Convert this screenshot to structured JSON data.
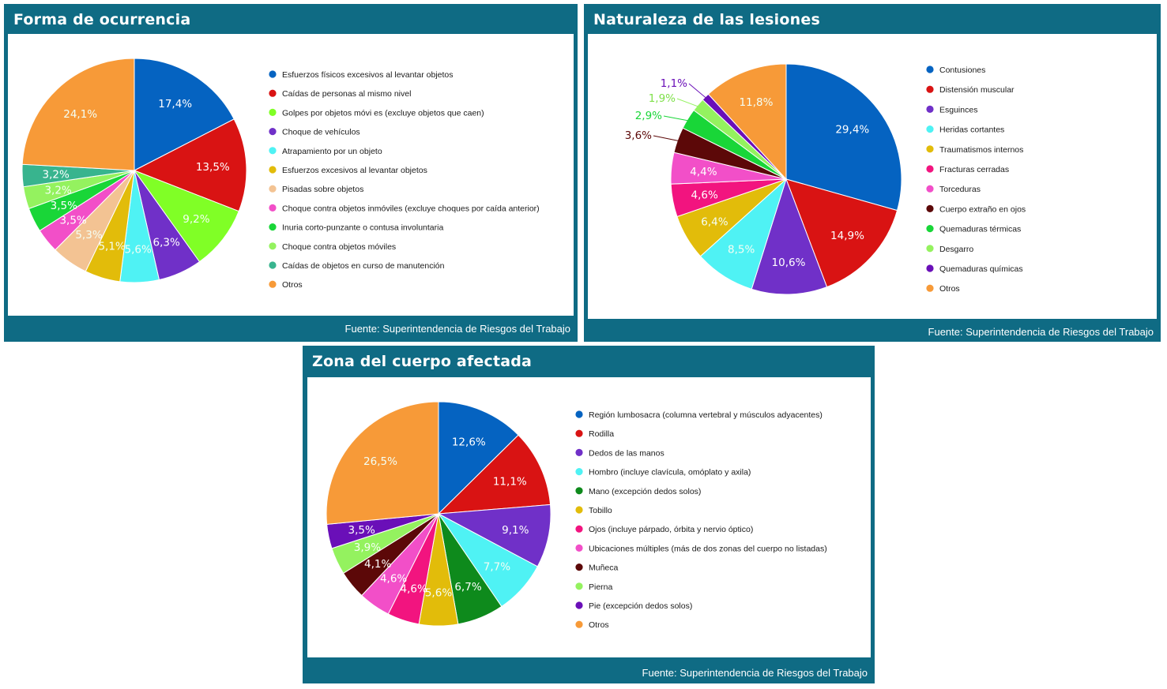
{
  "source_label": "Fuente: Superintendencia de Riesgos del Trabajo",
  "chart_data": [
    {
      "type": "pie",
      "title": "Forma de ocurrencia",
      "source": "Fuente: Superintendencia de Riesgos del Trabajo",
      "slices": [
        {
          "label": "Esfuerzos físicos excesivos al levantar objetos",
          "value": 17.4,
          "text": "17,4%",
          "color": "#0563c1"
        },
        {
          "label": "Caídas de personas al mismo nivel",
          "value": 13.5,
          "text": "13,5%",
          "color": "#d91313"
        },
        {
          "label": "Golpes por objetos móvi es (excluye objetos que caen)",
          "value": 9.2,
          "text": "9,2%",
          "color": "#80ff26"
        },
        {
          "label": "Choque de vehículos",
          "value": 6.3,
          "text": "6,3%",
          "color": "#7030c8"
        },
        {
          "label": "Atrapamiento por un objeto",
          "value": 5.6,
          "text": "5,6%",
          "color": "#4ff2f4"
        },
        {
          "label": "Esfuerzos excesivos al levantar objetos",
          "value": 5.1,
          "text": "5,1%",
          "color": "#e2bc0a"
        },
        {
          "label": "Pisadas sobre objetos",
          "value": 5.3,
          "text": "5,3%",
          "color": "#f3c393"
        },
        {
          "label": "Choque contra objetos inmóviles (excluye choques por caída anterior)",
          "value": 3.5,
          "text": "3,5%",
          "color": "#f24fc8"
        },
        {
          "label": "Inuria corto-punzante o contusa involuntaria",
          "value": 3.5,
          "text": "3,5%",
          "color": "#19d638"
        },
        {
          "label": "Choque contra objetos móviles",
          "value": 3.2,
          "text": "3,2%",
          "color": "#94f25f"
        },
        {
          "label": "Caídas de objetos en curso de manutención",
          "value": 3.2,
          "text": "3,2%",
          "color": "#38b48e"
        },
        {
          "label": "Otros",
          "value": 24.1,
          "text": "24,1%",
          "color": "#f79a38"
        }
      ]
    },
    {
      "type": "pie",
      "title": "Naturaleza de las lesiones",
      "source": "Fuente: Superintendencia de Riesgos del Trabajo",
      "slices": [
        {
          "label": "Contusiones",
          "value": 29.4,
          "text": "29,4%",
          "color": "#0563c1"
        },
        {
          "label": "Distensión muscular",
          "value": 14.9,
          "text": "14,9%",
          "color": "#d91313"
        },
        {
          "label": "Esguinces",
          "value": 10.6,
          "text": "10,6%",
          "color": "#7030c8"
        },
        {
          "label": "Heridas cortantes",
          "value": 8.5,
          "text": "8,5%",
          "color": "#4ff2f4"
        },
        {
          "label": "Traumatismos internos",
          "value": 6.4,
          "text": "6,4%",
          "color": "#e2bc0a"
        },
        {
          "label": "Fracturas cerradas",
          "value": 4.6,
          "text": "4,6%",
          "color": "#f2147f"
        },
        {
          "label": "Torceduras",
          "value": 4.4,
          "text": "4,4%",
          "color": "#f24fc8"
        },
        {
          "label": "Cuerpo extraño en ojos",
          "value": 3.6,
          "text": "3,6%",
          "color": "#5c0808"
        },
        {
          "label": "Quemaduras térmicas",
          "value": 2.9,
          "text": "2,9%",
          "color": "#19d638"
        },
        {
          "label": "Desgarro",
          "value": 1.9,
          "text": "1,9%",
          "color": "#94f25f"
        },
        {
          "label": "Quemaduras químicas",
          "value": 1.1,
          "text": "1,1%",
          "color": "#6a0fb8"
        },
        {
          "label": "Otros",
          "value": 11.8,
          "text": "11,8%",
          "color": "#f79a38"
        }
      ]
    },
    {
      "type": "pie",
      "title": "Zona del cuerpo afectada",
      "source": "Fuente: Superintendencia de Riesgos del Trabajo",
      "slices": [
        {
          "label": "Región lumbosacra (columna vertebral y músculos adyacentes)",
          "value": 12.6,
          "text": "12,6%",
          "color": "#0563c1"
        },
        {
          "label": "Rodilla",
          "value": 11.1,
          "text": "11,1%",
          "color": "#d91313"
        },
        {
          "label": "Dedos de las manos",
          "value": 9.1,
          "text": "9,1%",
          "color": "#7030c8"
        },
        {
          "label": "Hombro (incluye clavícula, omóplato y axila)",
          "value": 7.7,
          "text": "7,7%",
          "color": "#4ff2f4"
        },
        {
          "label": "Mano (excepción dedos solos)",
          "value": 6.7,
          "text": "6,7%",
          "color": "#0e8a1c"
        },
        {
          "label": "Tobillo",
          "value": 5.6,
          "text": "5,6%",
          "color": "#e2bc0a"
        },
        {
          "label": "Ojos (incluye párpado, órbita y nervio óptico)",
          "value": 4.6,
          "text": "4,6%",
          "color": "#f2147f"
        },
        {
          "label": "Ubicaciones múltiples (más de dos zonas del cuerpo no listadas)",
          "value": 4.6,
          "text": "4,6%",
          "color": "#f24fc8"
        },
        {
          "label": "Muñeca",
          "value": 4.1,
          "text": "4,1%",
          "color": "#5c0808"
        },
        {
          "label": "Pierna",
          "value": 3.9,
          "text": "3,9%",
          "color": "#94f25f"
        },
        {
          "label": "Pie (excepción dedos solos)",
          "value": 3.5,
          "text": "3,5%",
          "color": "#6a0fb8"
        },
        {
          "label": "Otros",
          "value": 26.5,
          "text": "26,5%",
          "color": "#f79a38"
        }
      ]
    }
  ]
}
